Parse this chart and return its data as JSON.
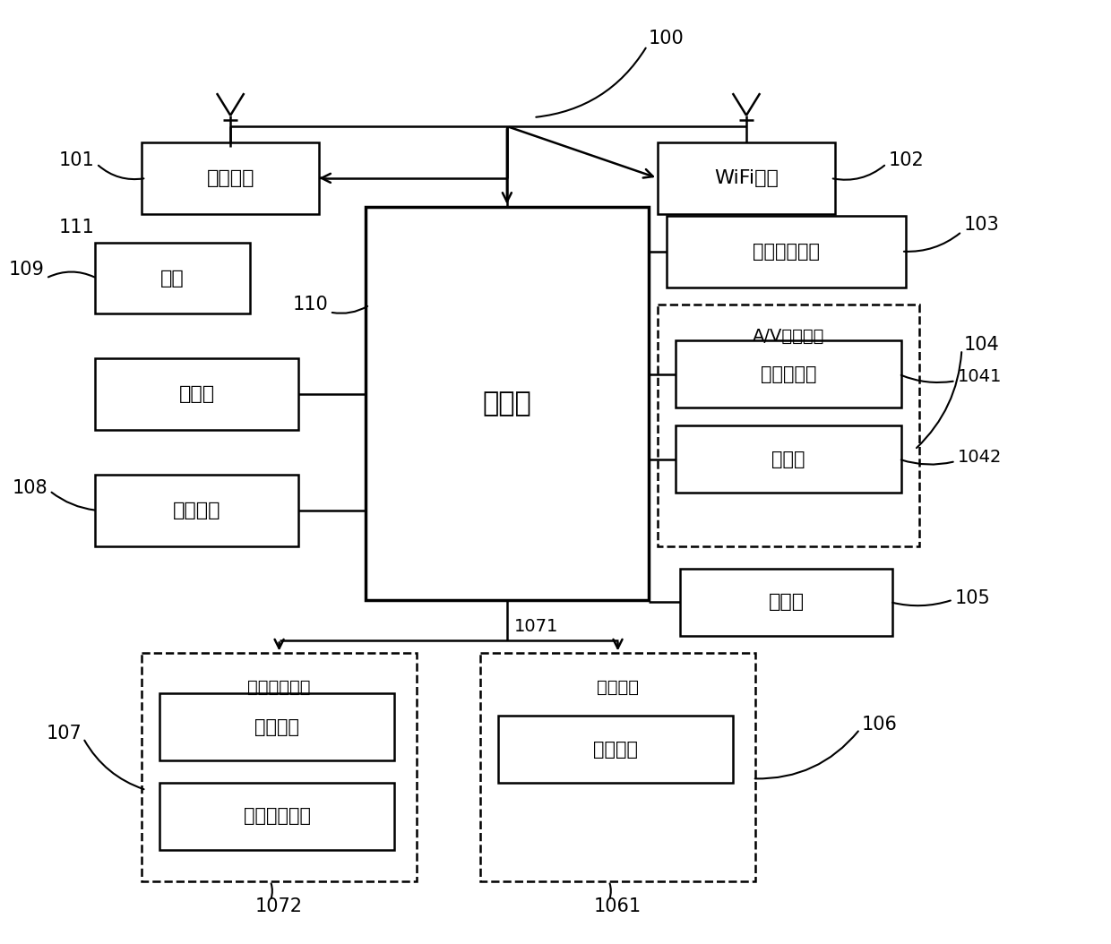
{
  "background_color": "#ffffff",
  "labels": {
    "100": "100",
    "101": "101",
    "102": "102",
    "103": "103",
    "104": "104",
    "105": "105",
    "106": "106",
    "107": "107",
    "108": "108",
    "109": "109",
    "110": "110",
    "111": "111",
    "1041": "1041",
    "1042": "1042",
    "1061": "1061",
    "1071": "1071",
    "1072": "1072"
  },
  "texts": {
    "rf": "射频单元",
    "wifi": "WiFi模块",
    "yinpin": "音频输出单元",
    "av_label": "A/V输入单元",
    "tuxing": "图形处理器",
    "maikefeng": "麦克风",
    "chuanganqi": "传感器",
    "chuliq": "处理器",
    "yonghu_label": "用户输入单元",
    "chukong": "触控面板",
    "qita": "其他输入设备",
    "xianshi_label": "显示单元",
    "xianshipanel": "显示面板",
    "dianyuan": "电源",
    "cunchu": "存储器",
    "jiekou": "接口单元"
  }
}
